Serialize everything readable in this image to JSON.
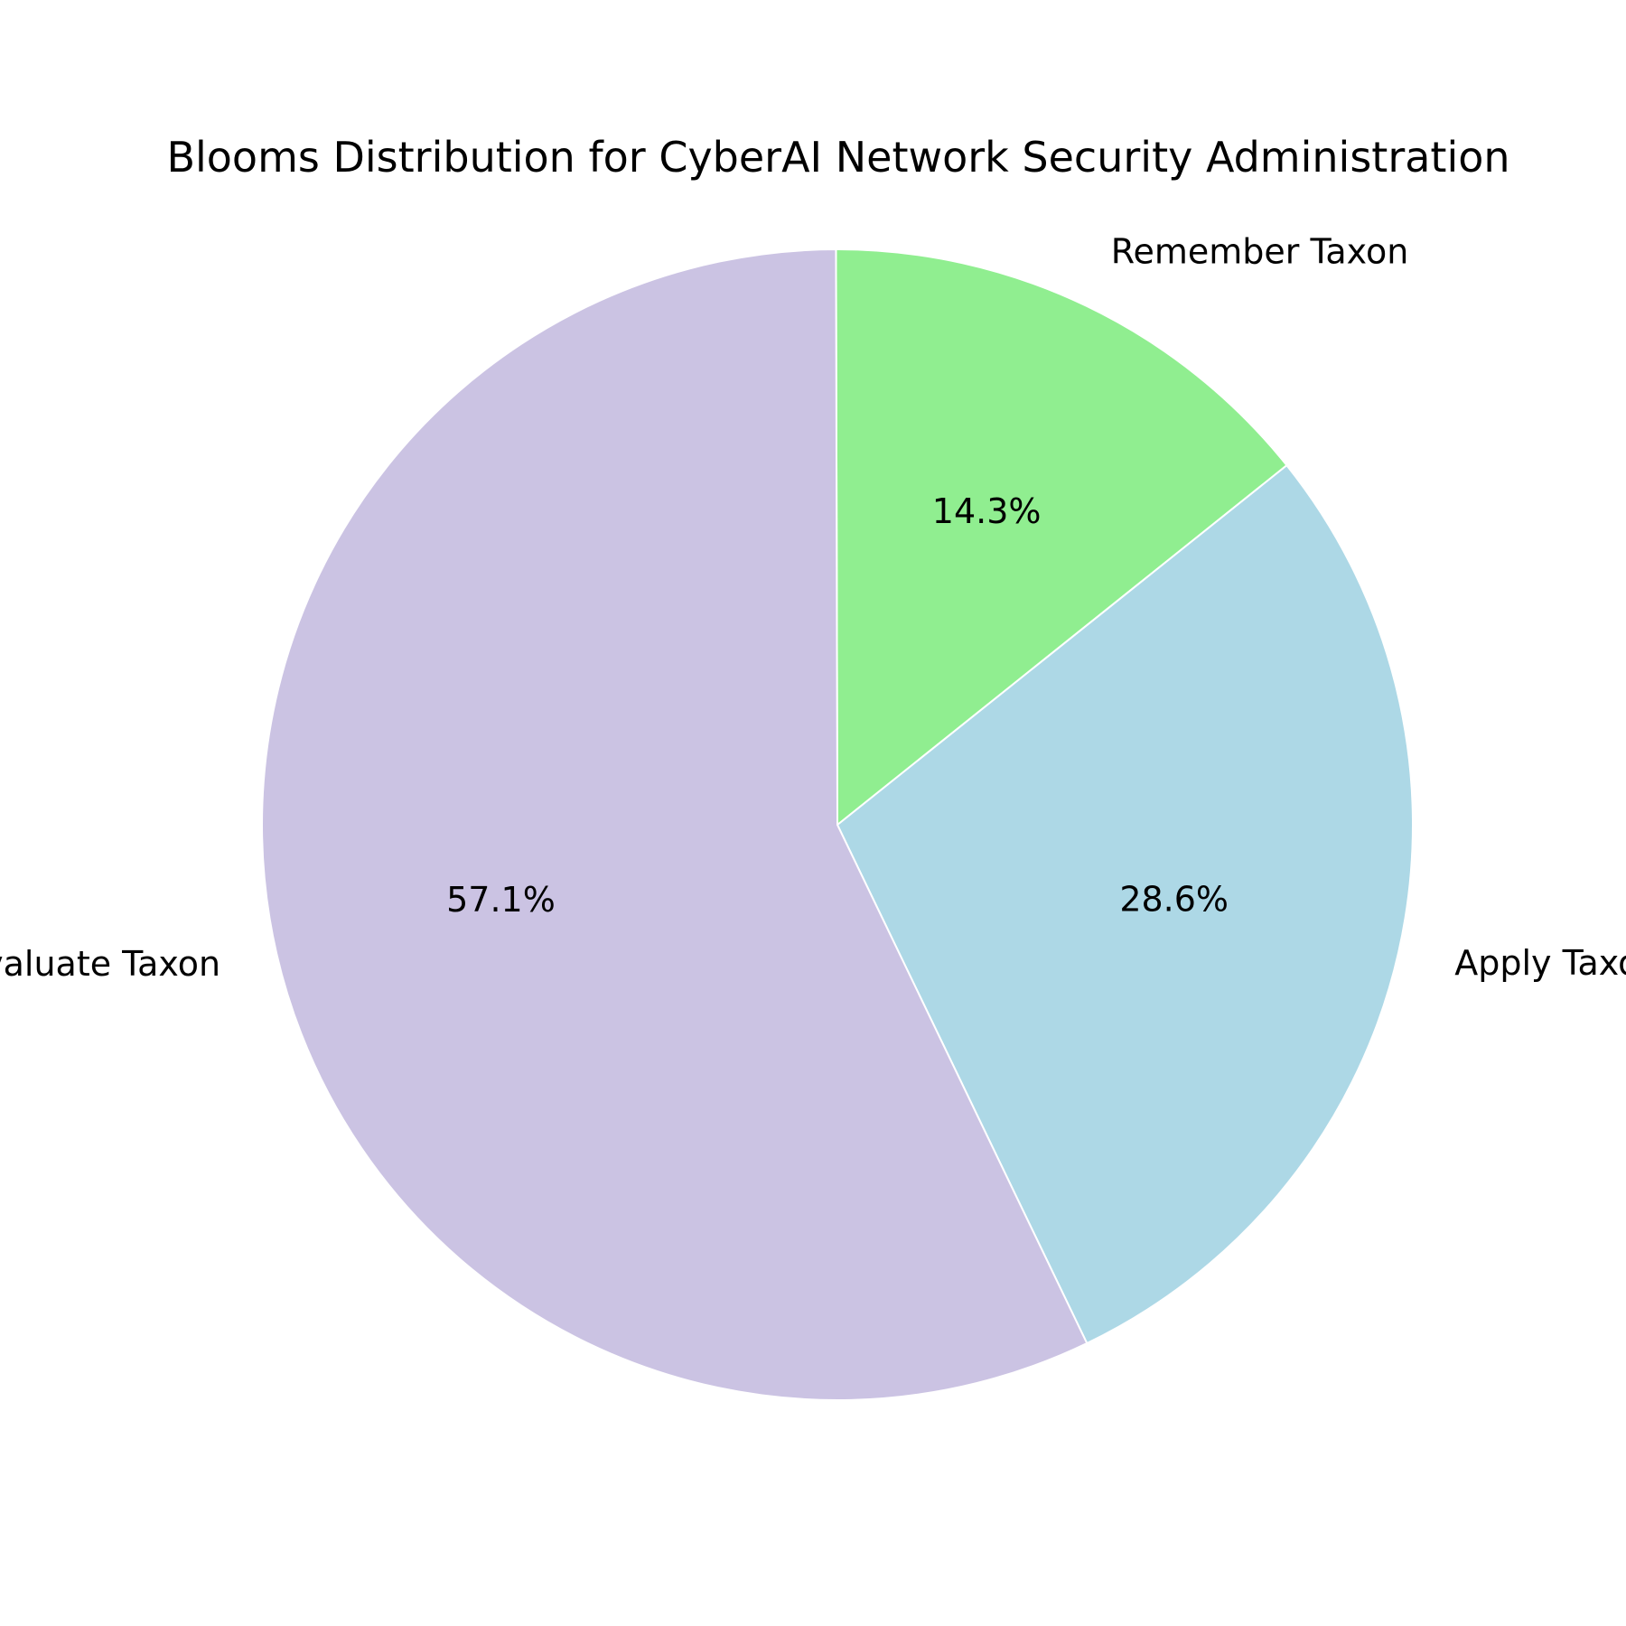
{
  "chart_data": {
    "type": "pie",
    "title": "Blooms Distribution for CyberAI Network Security Administration",
    "categories": [
      "Apply Taxon",
      "Remember Taxon",
      "Evaluate Taxon"
    ],
    "values": [
      28.6,
      14.3,
      57.1
    ],
    "percent_labels": [
      "28.6%",
      "14.3%",
      "57.1%"
    ],
    "colors": [
      "#add8e6",
      "#90ee90",
      "#cbc3e3"
    ],
    "start_angle_deg": -64.3,
    "direction": "counterclockwise",
    "legend": "none"
  }
}
